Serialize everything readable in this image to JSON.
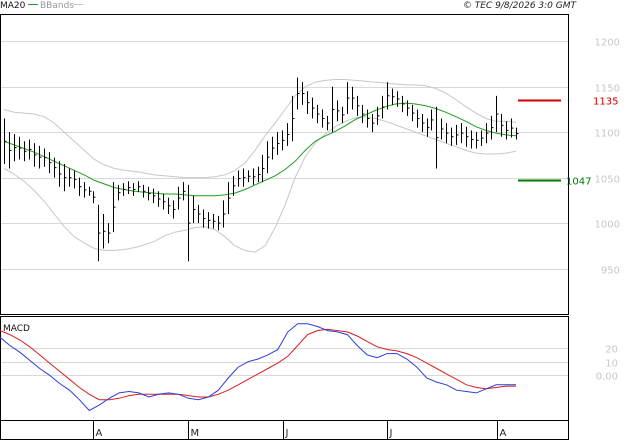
{
  "header": {
    "legend": [
      {
        "label": "MA20",
        "color": "#111111"
      },
      {
        "label": "BBands",
        "color": "#999999"
      }
    ],
    "source": "© TEC 9/8/2026 3:0 GMT"
  },
  "chart_data": [
    {
      "type": "ohlc",
      "panel": "price",
      "ylim": [
        900,
        1230
      ],
      "y_ticks": [
        1200,
        1150,
        1100,
        1050,
        1000,
        950
      ],
      "x_month_labels": [
        "A",
        "M",
        "J",
        "J",
        "A"
      ],
      "grid": true,
      "bars": [
        [
          1115,
          1065
        ],
        [
          1100,
          1060
        ],
        [
          1098,
          1068
        ],
        [
          1095,
          1070
        ],
        [
          1090,
          1068
        ],
        [
          1092,
          1070
        ],
        [
          1088,
          1062
        ],
        [
          1085,
          1060
        ],
        [
          1082,
          1062
        ],
        [
          1078,
          1055
        ],
        [
          1072,
          1050
        ],
        [
          1068,
          1040
        ],
        [
          1065,
          1035
        ],
        [
          1060,
          1040
        ],
        [
          1058,
          1038
        ],
        [
          1050,
          1030
        ],
        [
          1045,
          1028
        ],
        [
          1040,
          1030
        ],
        [
          1035,
          1022
        ],
        [
          1020,
          958
        ],
        [
          1010,
          972
        ],
        [
          1000,
          978
        ],
        [
          1045,
          990
        ],
        [
          1042,
          1025
        ],
        [
          1044,
          1030
        ],
        [
          1046,
          1032
        ],
        [
          1044,
          1030
        ],
        [
          1046,
          1034
        ],
        [
          1042,
          1028
        ],
        [
          1040,
          1025
        ],
        [
          1038,
          1022
        ],
        [
          1035,
          1018
        ],
        [
          1032,
          1015
        ],
        [
          1028,
          1010
        ],
        [
          1025,
          1005
        ],
        [
          1040,
          1015
        ],
        [
          1045,
          1025
        ],
        [
          1042,
          958
        ],
        [
          1030,
          1000
        ],
        [
          1020,
          1000
        ],
        [
          1015,
          995
        ],
        [
          1012,
          994
        ],
        [
          1010,
          994
        ],
        [
          1008,
          992
        ],
        [
          1025,
          995
        ],
        [
          1045,
          1010
        ],
        [
          1052,
          1030
        ],
        [
          1058,
          1040
        ],
        [
          1060,
          1040
        ],
        [
          1058,
          1045
        ],
        [
          1060,
          1042
        ],
        [
          1062,
          1045
        ],
        [
          1075,
          1045
        ],
        [
          1090,
          1055
        ],
        [
          1095,
          1070
        ],
        [
          1100,
          1075
        ],
        [
          1102,
          1080
        ],
        [
          1110,
          1085
        ],
        [
          1140,
          1090
        ],
        [
          1160,
          1125
        ],
        [
          1155,
          1130
        ],
        [
          1145,
          1120
        ],
        [
          1138,
          1115
        ],
        [
          1130,
          1110
        ],
        [
          1125,
          1105
        ],
        [
          1118,
          1102
        ],
        [
          1150,
          1100
        ],
        [
          1135,
          1112
        ],
        [
          1128,
          1110
        ],
        [
          1155,
          1120
        ],
        [
          1150,
          1125
        ],
        [
          1140,
          1118
        ],
        [
          1130,
          1110
        ],
        [
          1125,
          1105
        ],
        [
          1120,
          1100
        ],
        [
          1128,
          1108
        ],
        [
          1140,
          1115
        ],
        [
          1155,
          1125
        ],
        [
          1148,
          1130
        ],
        [
          1145,
          1128
        ],
        [
          1140,
          1122
        ],
        [
          1135,
          1118
        ],
        [
          1130,
          1112
        ],
        [
          1125,
          1105
        ],
        [
          1120,
          1100
        ],
        [
          1115,
          1095
        ],
        [
          1125,
          1102
        ],
        [
          1128,
          1060
        ],
        [
          1115,
          1092
        ],
        [
          1110,
          1088
        ],
        [
          1105,
          1085
        ],
        [
          1108,
          1086
        ],
        [
          1110,
          1088
        ],
        [
          1106,
          1084
        ],
        [
          1102,
          1082
        ],
        [
          1100,
          1082
        ],
        [
          1102,
          1085
        ],
        [
          1110,
          1088
        ],
        [
          1118,
          1092
        ],
        [
          1140,
          1100
        ],
        [
          1120,
          1095
        ],
        [
          1112,
          1092
        ],
        [
          1115,
          1094
        ],
        [
          1105,
          1092
        ]
      ],
      "series": [
        {
          "name": "MA20",
          "color": "#1f9e1f",
          "values": [
            1090,
            1086,
            1082,
            1078,
            1073,
            1068,
            1063,
            1058,
            1053,
            1047,
            1043,
            1039,
            1037,
            1035,
            1034,
            1033,
            1032,
            1032,
            1031,
            1030,
            1030,
            1030,
            1031,
            1033,
            1037,
            1042,
            1047,
            1052,
            1059,
            1068,
            1080,
            1090,
            1096,
            1101,
            1107,
            1114,
            1119,
            1124,
            1128,
            1131,
            1132,
            1131,
            1129,
            1126,
            1122,
            1117,
            1112,
            1106,
            1102,
            1099,
            1097,
            1096
          ]
        },
        {
          "name": "BBand upper",
          "color": "#c8c8c8",
          "values": [
            1125,
            1122,
            1121,
            1120,
            1117,
            1110,
            1100,
            1090,
            1080,
            1070,
            1064,
            1060,
            1058,
            1057,
            1055,
            1053,
            1052,
            1051,
            1050,
            1050,
            1050,
            1051,
            1053,
            1058,
            1066,
            1080,
            1096,
            1110,
            1125,
            1140,
            1150,
            1155,
            1157,
            1158,
            1158,
            1157,
            1156,
            1155,
            1154,
            1153,
            1152,
            1152,
            1151,
            1148,
            1143,
            1136,
            1128,
            1121,
            1115,
            1112,
            1112,
            1111
          ]
        },
        {
          "name": "BBand lower",
          "color": "#c8c8c8",
          "values": [
            1060,
            1054,
            1046,
            1036,
            1024,
            1010,
            996,
            985,
            978,
            972,
            970,
            970,
            971,
            973,
            976,
            980,
            986,
            990,
            992,
            995,
            996,
            993,
            985,
            975,
            970,
            968,
            975,
            995,
            1020,
            1050,
            1073,
            1088,
            1098,
            1106,
            1112,
            1116,
            1117,
            1115,
            1112,
            1108,
            1104,
            1100,
            1096,
            1092,
            1088,
            1084,
            1080,
            1077,
            1076,
            1076,
            1077,
            1079
          ]
        }
      ],
      "markers": [
        {
          "label": "1135",
          "value": 1135,
          "color": "#cc0000"
        },
        {
          "label": "1047",
          "value": 1047,
          "color": "#007a00"
        }
      ]
    },
    {
      "type": "line",
      "panel": "macd",
      "title": "MACD",
      "ylim": [
        -33,
        43
      ],
      "y_ticks": [
        20,
        10,
        0
      ],
      "y_tick_labels": [
        "20",
        "10",
        "0.00"
      ],
      "series": [
        {
          "name": "MACD",
          "color": "#2d3fd8",
          "values": [
            28,
            22,
            17,
            11,
            5,
            0,
            -6,
            -11,
            -18,
            -26,
            -22,
            -17,
            -13,
            -12,
            -13,
            -16,
            -14,
            -13,
            -14,
            -17,
            -18,
            -16,
            -11,
            -2,
            6,
            10,
            12,
            15,
            19,
            32,
            38,
            38,
            36,
            33,
            32,
            30,
            22,
            15,
            13,
            16,
            16,
            12,
            6,
            -2,
            -5,
            -7,
            -11,
            -12,
            -13,
            -10,
            -7,
            -7,
            -7
          ]
        },
        {
          "name": "Signal",
          "color": "#d82020",
          "values": [
            33,
            30,
            26,
            21,
            15,
            9,
            3,
            -3,
            -9,
            -14,
            -18,
            -18,
            -17,
            -15,
            -14,
            -14,
            -14,
            -14,
            -14,
            -15,
            -16,
            -16,
            -14,
            -11,
            -7,
            -3,
            1,
            5,
            9,
            14,
            22,
            30,
            33,
            34,
            33,
            32,
            29,
            25,
            21,
            19,
            18,
            16,
            13,
            9,
            5,
            1,
            -3,
            -7,
            -9,
            -10,
            -9,
            -8,
            -8
          ]
        }
      ]
    }
  ]
}
